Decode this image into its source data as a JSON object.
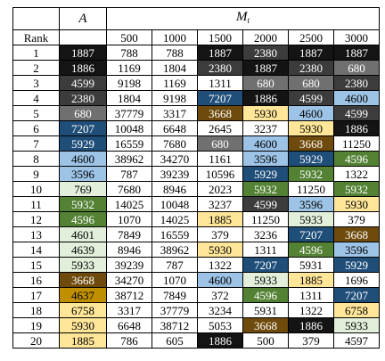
{
  "header": {
    "a_label": "A",
    "m_label": "M",
    "m_sub": "t",
    "rank_label": "Rank",
    "cols": [
      "500",
      "1000",
      "1500",
      "2000",
      "2500",
      "3000"
    ]
  },
  "palette": {
    "k": "#141414",
    "d": "#3c3c3c",
    "g": "#707070",
    "m": "#8f8f8f",
    "b": "#1f4e79",
    "l": "#9dc3e6",
    "n": "#6e4a0c",
    "y": "#ffe699",
    "t": "#548235",
    "s": "#e2efda",
    "w": "#ffffff",
    "o": "#bf8f00"
  },
  "rows": [
    {
      "rank": "1",
      "cells": [
        {
          "v": "1887",
          "c": "k"
        },
        {
          "v": "788",
          "c": "w"
        },
        {
          "v": "788",
          "c": "w"
        },
        {
          "v": "1887",
          "c": "k"
        },
        {
          "v": "2380",
          "c": "d"
        },
        {
          "v": "1887",
          "c": "k"
        },
        {
          "v": "1887",
          "c": "k"
        }
      ]
    },
    {
      "rank": "2",
      "cells": [
        {
          "v": "1886",
          "c": "k"
        },
        {
          "v": "1169",
          "c": "w"
        },
        {
          "v": "1804",
          "c": "w"
        },
        {
          "v": "2380",
          "c": "d"
        },
        {
          "v": "1887",
          "c": "k"
        },
        {
          "v": "2380",
          "c": "d"
        },
        {
          "v": "680",
          "c": "g"
        }
      ]
    },
    {
      "rank": "3",
      "cells": [
        {
          "v": "4599",
          "c": "d"
        },
        {
          "v": "9198",
          "c": "w"
        },
        {
          "v": "1169",
          "c": "w"
        },
        {
          "v": "1311",
          "c": "w"
        },
        {
          "v": "680",
          "c": "g"
        },
        {
          "v": "680",
          "c": "g"
        },
        {
          "v": "2380",
          "c": "d"
        }
      ]
    },
    {
      "rank": "4",
      "cells": [
        {
          "v": "2380",
          "c": "d"
        },
        {
          "v": "1804",
          "c": "w"
        },
        {
          "v": "9198",
          "c": "w"
        },
        {
          "v": "7207",
          "c": "b"
        },
        {
          "v": "1886",
          "c": "k"
        },
        {
          "v": "4599",
          "c": "d"
        },
        {
          "v": "4600",
          "c": "l"
        }
      ]
    },
    {
      "rank": "5",
      "cells": [
        {
          "v": "680",
          "c": "g"
        },
        {
          "v": "37779",
          "c": "w"
        },
        {
          "v": "3317",
          "c": "w"
        },
        {
          "v": "3668",
          "c": "n"
        },
        {
          "v": "5930",
          "c": "y"
        },
        {
          "v": "4600",
          "c": "l"
        },
        {
          "v": "4599",
          "c": "d"
        }
      ]
    },
    {
      "rank": "6",
      "cells": [
        {
          "v": "7207",
          "c": "b"
        },
        {
          "v": "10048",
          "c": "w"
        },
        {
          "v": "6648",
          "c": "w"
        },
        {
          "v": "2645",
          "c": "w"
        },
        {
          "v": "3237",
          "c": "w"
        },
        {
          "v": "5930",
          "c": "y"
        },
        {
          "v": "1886",
          "c": "k"
        }
      ]
    },
    {
      "rank": "7",
      "cells": [
        {
          "v": "5929",
          "c": "b"
        },
        {
          "v": "16559",
          "c": "w"
        },
        {
          "v": "7680",
          "c": "w"
        },
        {
          "v": "680",
          "c": "g"
        },
        {
          "v": "4600",
          "c": "l"
        },
        {
          "v": "3668",
          "c": "n"
        },
        {
          "v": "11250",
          "c": "w"
        }
      ]
    },
    {
      "rank": "8",
      "cells": [
        {
          "v": "4600",
          "c": "l"
        },
        {
          "v": "38962",
          "c": "w"
        },
        {
          "v": "34270",
          "c": "w"
        },
        {
          "v": "1161",
          "c": "w"
        },
        {
          "v": "3596",
          "c": "l"
        },
        {
          "v": "5929",
          "c": "b"
        },
        {
          "v": "4596",
          "c": "t"
        }
      ]
    },
    {
      "rank": "9",
      "cells": [
        {
          "v": "3596",
          "c": "l"
        },
        {
          "v": "787",
          "c": "w"
        },
        {
          "v": "39239",
          "c": "w"
        },
        {
          "v": "10596",
          "c": "w"
        },
        {
          "v": "5929",
          "c": "b"
        },
        {
          "v": "5932",
          "c": "t"
        },
        {
          "v": "1322",
          "c": "w"
        }
      ]
    },
    {
      "rank": "10",
      "cells": [
        {
          "v": "769",
          "c": "s"
        },
        {
          "v": "7680",
          "c": "w"
        },
        {
          "v": "8946",
          "c": "w"
        },
        {
          "v": "2023",
          "c": "w"
        },
        {
          "v": "5932",
          "c": "t"
        },
        {
          "v": "11250",
          "c": "w"
        },
        {
          "v": "5932",
          "c": "t"
        }
      ]
    },
    {
      "rank": "11",
      "cells": [
        {
          "v": "5932",
          "c": "t"
        },
        {
          "v": "14025",
          "c": "w"
        },
        {
          "v": "10048",
          "c": "w"
        },
        {
          "v": "3237",
          "c": "w"
        },
        {
          "v": "4599",
          "c": "d"
        },
        {
          "v": "3596",
          "c": "l"
        },
        {
          "v": "5930",
          "c": "y"
        }
      ]
    },
    {
      "rank": "12",
      "cells": [
        {
          "v": "4596",
          "c": "t"
        },
        {
          "v": "1070",
          "c": "w"
        },
        {
          "v": "14025",
          "c": "w"
        },
        {
          "v": "1885",
          "c": "y"
        },
        {
          "v": "11250",
          "c": "w"
        },
        {
          "v": "5933",
          "c": "s"
        },
        {
          "v": "379",
          "c": "w"
        }
      ]
    },
    {
      "rank": "13",
      "cells": [
        {
          "v": "4601",
          "c": "s"
        },
        {
          "v": "7849",
          "c": "w"
        },
        {
          "v": "16559",
          "c": "w"
        },
        {
          "v": "379",
          "c": "w"
        },
        {
          "v": "3236",
          "c": "w"
        },
        {
          "v": "7207",
          "c": "b"
        },
        {
          "v": "3668",
          "c": "n"
        }
      ]
    },
    {
      "rank": "14",
      "cells": [
        {
          "v": "4639",
          "c": "s"
        },
        {
          "v": "8946",
          "c": "w"
        },
        {
          "v": "38962",
          "c": "w"
        },
        {
          "v": "5930",
          "c": "y"
        },
        {
          "v": "1311",
          "c": "w"
        },
        {
          "v": "4596",
          "c": "t"
        },
        {
          "v": "3596",
          "c": "l"
        }
      ]
    },
    {
      "rank": "15",
      "cells": [
        {
          "v": "5933",
          "c": "s"
        },
        {
          "v": "39239",
          "c": "w"
        },
        {
          "v": "787",
          "c": "w"
        },
        {
          "v": "1322",
          "c": "w"
        },
        {
          "v": "7207",
          "c": "b"
        },
        {
          "v": "5931",
          "c": "w"
        },
        {
          "v": "5929",
          "c": "b"
        }
      ]
    },
    {
      "rank": "16",
      "cells": [
        {
          "v": "3668",
          "c": "n"
        },
        {
          "v": "34270",
          "c": "w"
        },
        {
          "v": "1070",
          "c": "w"
        },
        {
          "v": "4600",
          "c": "l"
        },
        {
          "v": "5933",
          "c": "s"
        },
        {
          "v": "1885",
          "c": "y"
        },
        {
          "v": "1696",
          "c": "w"
        }
      ]
    },
    {
      "rank": "17",
      "cells": [
        {
          "v": "4637",
          "c": "o"
        },
        {
          "v": "38712",
          "c": "w"
        },
        {
          "v": "7849",
          "c": "w"
        },
        {
          "v": "372",
          "c": "w"
        },
        {
          "v": "4596",
          "c": "t"
        },
        {
          "v": "1311",
          "c": "w"
        },
        {
          "v": "7207",
          "c": "b"
        }
      ]
    },
    {
      "rank": "18",
      "cells": [
        {
          "v": "6758",
          "c": "y"
        },
        {
          "v": "3317",
          "c": "w"
        },
        {
          "v": "37779",
          "c": "w"
        },
        {
          "v": "3234",
          "c": "w"
        },
        {
          "v": "5931",
          "c": "w"
        },
        {
          "v": "1322",
          "c": "w"
        },
        {
          "v": "6758",
          "c": "y"
        }
      ]
    },
    {
      "rank": "19",
      "cells": [
        {
          "v": "5930",
          "c": "y"
        },
        {
          "v": "6648",
          "c": "w"
        },
        {
          "v": "38712",
          "c": "w"
        },
        {
          "v": "5053",
          "c": "w"
        },
        {
          "v": "3668",
          "c": "n"
        },
        {
          "v": "1886",
          "c": "k"
        },
        {
          "v": "5933",
          "c": "s"
        }
      ]
    },
    {
      "rank": "20",
      "cells": [
        {
          "v": "1885",
          "c": "y"
        },
        {
          "v": "786",
          "c": "w"
        },
        {
          "v": "605",
          "c": "w"
        },
        {
          "v": "1886",
          "c": "k"
        },
        {
          "v": "500",
          "c": "w"
        },
        {
          "v": "379",
          "c": "w"
        },
        {
          "v": "4597",
          "c": "w"
        }
      ]
    }
  ]
}
